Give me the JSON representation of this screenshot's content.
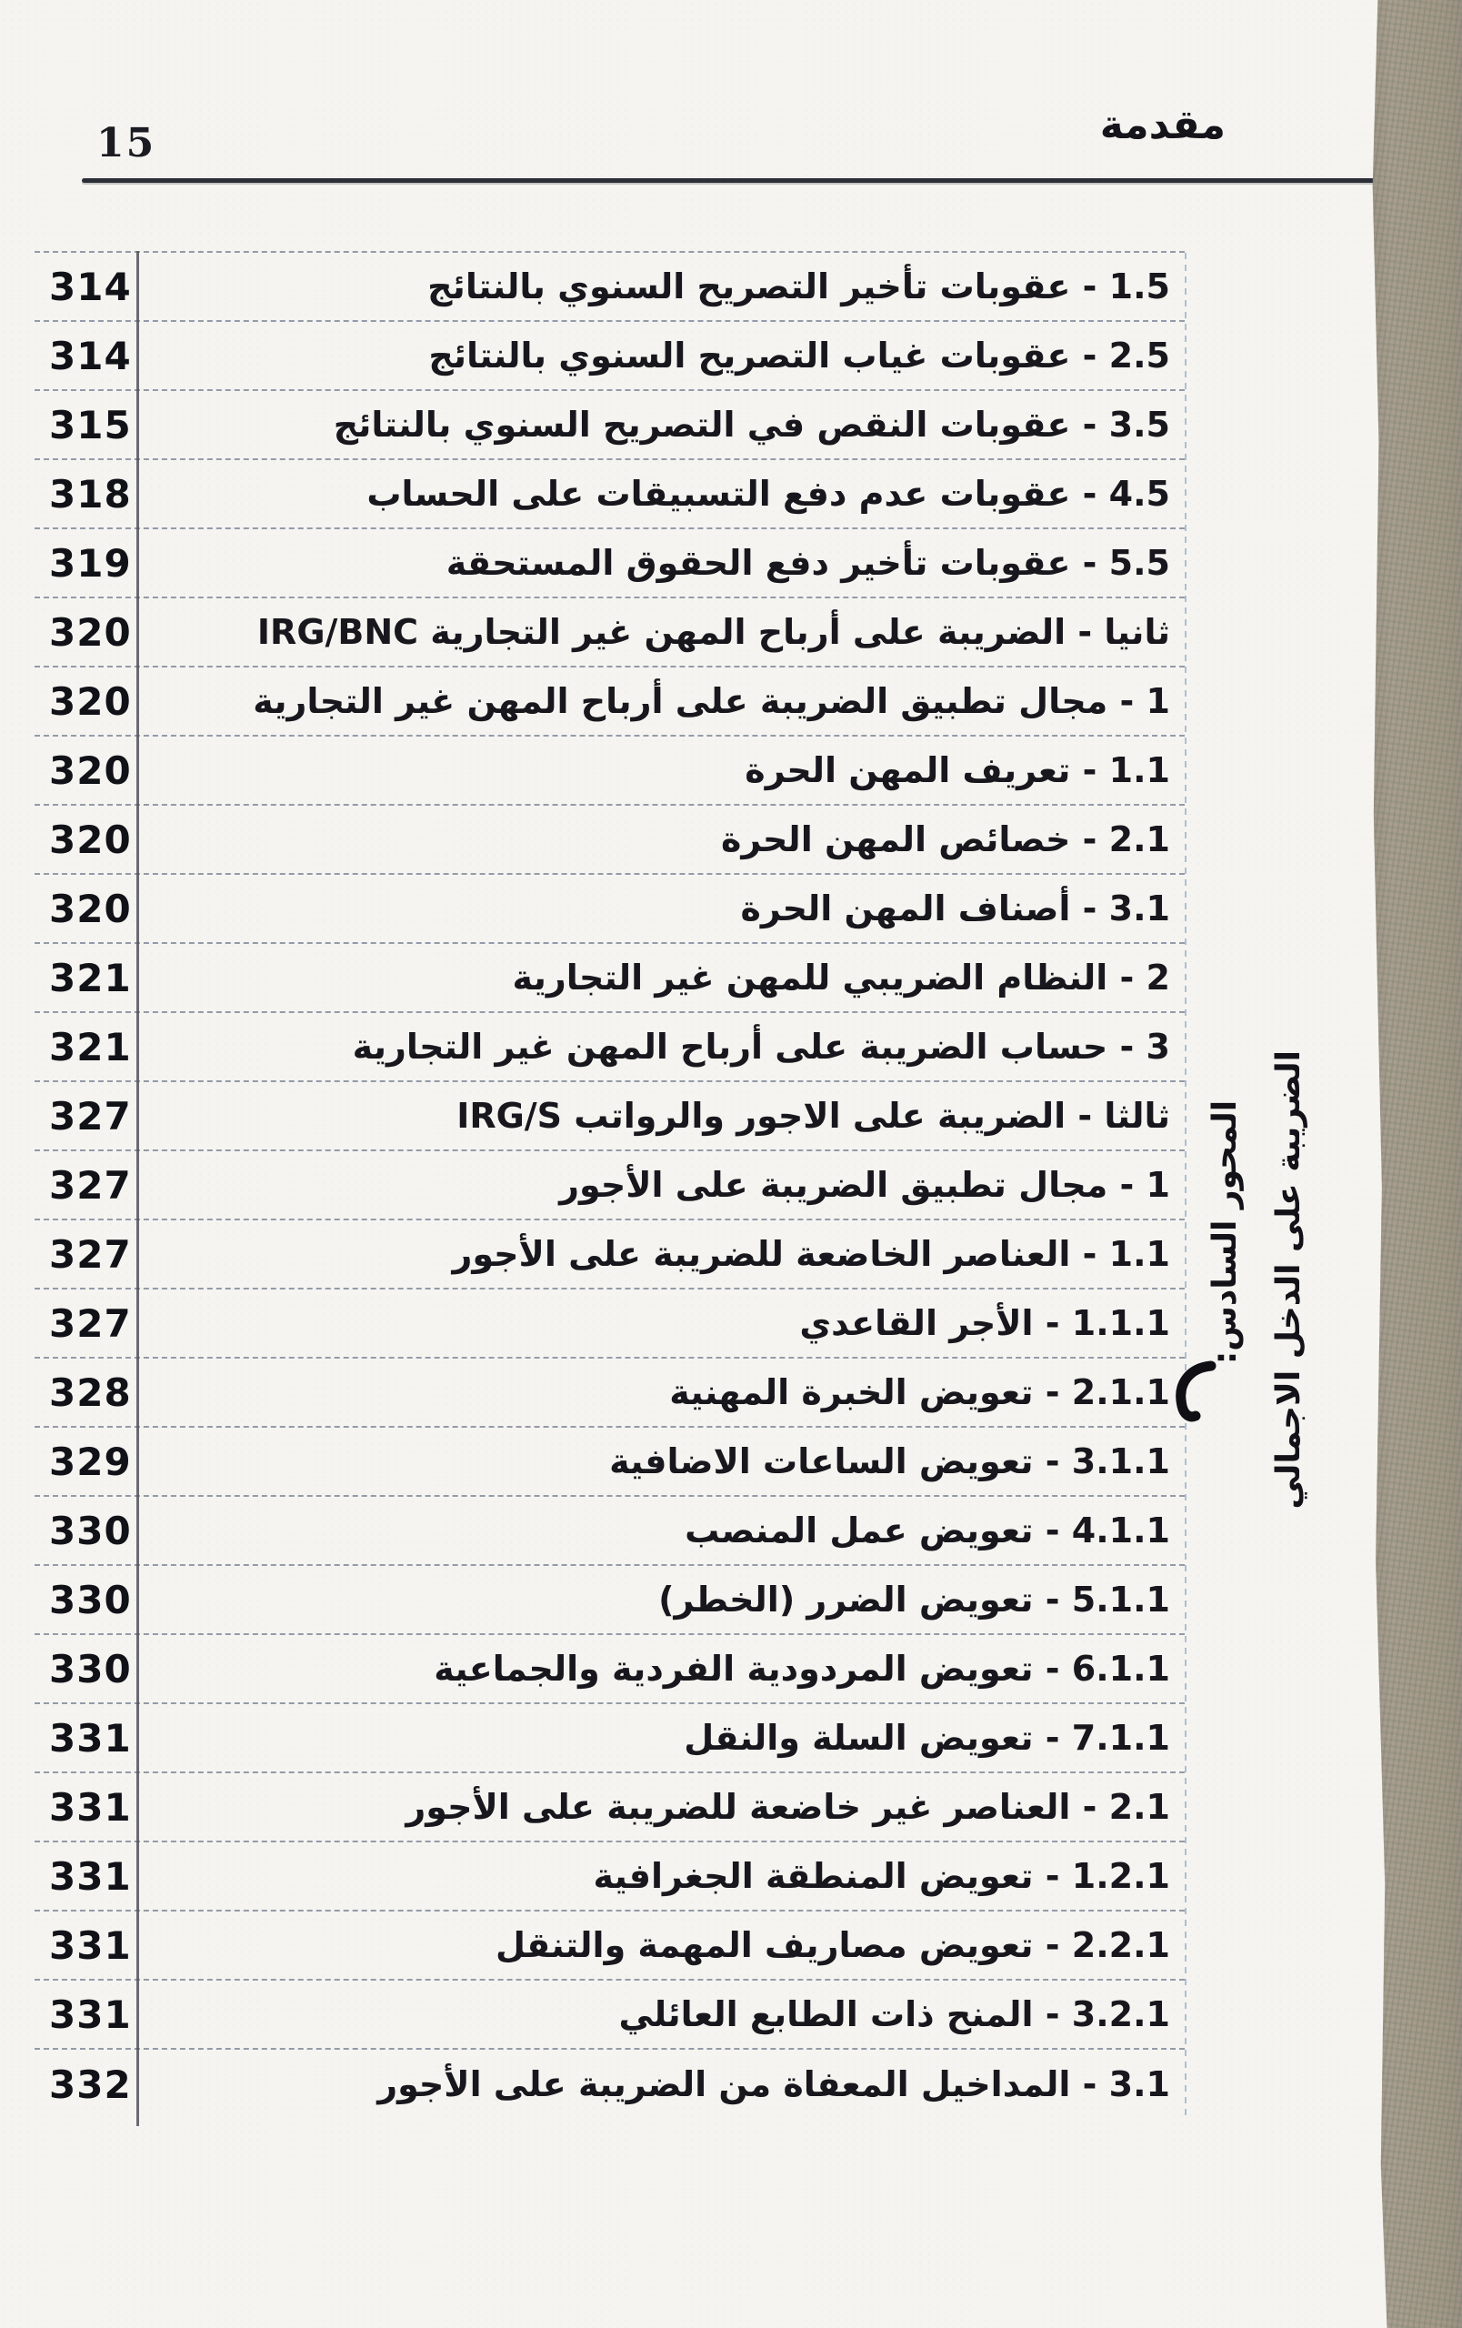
{
  "page": {
    "number": "15",
    "header": "مقدمة"
  },
  "margin_note": {
    "line1": "المحور السادس:",
    "line2": "الضريبة على الدخل الاجمالي"
  },
  "toc": {
    "rows": [
      {
        "label": "1.5 - عقوبات تأخير التصريح السنوي بالنتائج",
        "page": "314"
      },
      {
        "label": "2.5 - عقوبات غياب التصريح السنوي بالنتائج",
        "page": "314"
      },
      {
        "label": "3.5 - عقوبات النقص في التصريح السنوي بالنتائج",
        "page": "315"
      },
      {
        "label": "4.5 - عقوبات عدم دفع التسبيقات على الحساب",
        "page": "318"
      },
      {
        "label": "5.5 - عقوبات تأخير دفع الحقوق المستحقة",
        "page": "319"
      },
      {
        "label": "ثانيا - الضريبة على أرباح المهن غير التجارية IRG/BNC",
        "page": "320"
      },
      {
        "label": "1 - مجال تطبيق الضريبة على أرباح المهن غير التجارية",
        "page": "320"
      },
      {
        "label": "1.1 - تعريف المهن الحرة",
        "page": "320"
      },
      {
        "label": "2.1 - خصائص المهن الحرة",
        "page": "320"
      },
      {
        "label": "3.1 - أصناف المهن الحرة",
        "page": "320"
      },
      {
        "label": "2 - النظام الضريبي للمهن غير التجارية",
        "page": "321"
      },
      {
        "label": "3 - حساب الضريبة على أرباح المهن غير التجارية",
        "page": "321"
      },
      {
        "label": "ثالثا - الضريبة على الاجور والرواتب IRG/S",
        "page": "327"
      },
      {
        "label": "1 - مجال تطبيق الضريبة على الأجور",
        "page": "327"
      },
      {
        "label": "1.1 - العناصر الخاضعة للضريبة على الأجور",
        "page": "327"
      },
      {
        "label": "1.1.1 - الأجر القاعدي",
        "page": "327"
      },
      {
        "label": "2.1.1 - تعويض الخبرة المهنية",
        "page": "328"
      },
      {
        "label": "3.1.1 - تعويض الساعات الاضافية",
        "page": "329"
      },
      {
        "label": "4.1.1 - تعويض عمل المنصب",
        "page": "330"
      },
      {
        "label": "5.1.1 - تعويض الضرر (الخطر)",
        "page": "330"
      },
      {
        "label": "6.1.1 - تعويض المردودية الفردية والجماعية",
        "page": "330"
      },
      {
        "label": "7.1.1 - تعويض السلة والنقل",
        "page": "331"
      },
      {
        "label": "2.1 - العناصر غير خاضعة للضريبة على الأجور",
        "page": "331"
      },
      {
        "label": "1.2.1 - تعويض المنطقة الجغرافية",
        "page": "331"
      },
      {
        "label": "2.2.1 - تعويض مصاريف المهمة والتنقل",
        "page": "331"
      },
      {
        "label": "3.2.1 - المنح ذات الطابع العائلي",
        "page": "331"
      },
      {
        "label": "3.1 - المداخيل المعفاة من الضريبة على الأجور",
        "page": "332"
      }
    ]
  },
  "colors": {
    "page_background": "#f5f4f0",
    "book_edge": "#a39a8b",
    "rule": "#2b2e36",
    "separator": "#606a82"
  }
}
